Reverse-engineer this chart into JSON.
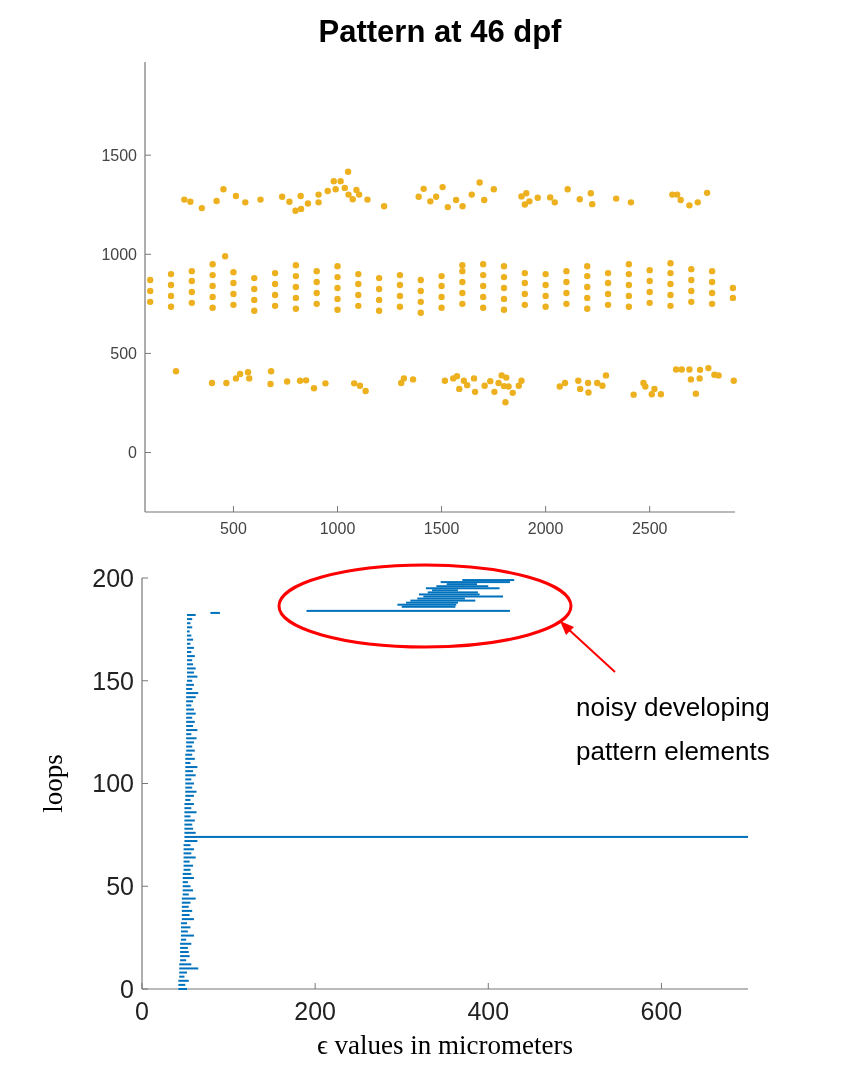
{
  "chart_data": [
    {
      "type": "scatter",
      "title": "Pattern at 46 dpf",
      "marker": "circle",
      "color": "#edb120",
      "x": [
        264,
        293,
        348,
        419,
        452,
        512,
        557,
        630,
        734,
        769,
        798,
        825,
        823,
        858,
        909,
        909,
        953,
        982,
        1015,
        991,
        1035,
        1051,
        1053,
        1073,
        1091,
        1104,
        1144,
        1224,
        1390,
        1414,
        1446,
        1474,
        1505,
        1530,
        1570,
        1601,
        1645,
        1683,
        1705,
        1751,
        1884,
        1907,
        1900,
        1922,
        1962,
        2022,
        2044,
        2106,
        2164,
        2217,
        2224,
        2339,
        2410,
        2609,
        2632,
        2649,
        2691,
        2731,
        2776,
        224,
        397,
        466,
        512,
        532,
        570,
        576,
        681,
        678,
        758,
        820,
        849,
        887,
        942,
        1080,
        1108,
        1135,
        1306,
        1319,
        1363,
        1516,
        1556,
        1574,
        1585,
        1607,
        1623,
        1656,
        1661,
        1707,
        1734,
        1754,
        1774,
        1789,
        1811,
        1800,
        1822,
        1807,
        1842,
        1871,
        1884,
        2068,
        2093,
        2157,
        2166,
        2204,
        2206,
        2248,
        2273,
        2290,
        2423,
        2470,
        2479,
        2510,
        2523,
        2554,
        2627,
        2654,
        2691,
        2698,
        2722,
        2742,
        2782,
        2811,
        2831,
        2740,
        2904,
        100,
        100,
        100,
        200,
        200,
        200,
        200,
        300,
        300,
        300,
        300,
        400,
        400,
        400,
        400,
        400,
        460,
        500,
        500,
        500,
        500,
        600,
        600,
        600,
        600,
        700,
        700,
        700,
        700,
        800,
        800,
        800,
        800,
        800,
        900,
        900,
        900,
        900,
        1000,
        1000,
        1000,
        1000,
        1000,
        1100,
        1100,
        1100,
        1100,
        1200,
        1200,
        1200,
        1200,
        1300,
        1300,
        1300,
        1300,
        1400,
        1400,
        1400,
        1400,
        1500,
        1500,
        1500,
        1500,
        1600,
        1600,
        1600,
        1600,
        1600,
        1700,
        1700,
        1700,
        1700,
        1700,
        1800,
        1800,
        1800,
        1800,
        1800,
        1900,
        1900,
        1900,
        1900,
        2000,
        2000,
        2000,
        2000,
        2100,
        2100,
        2100,
        2100,
        2200,
        2200,
        2200,
        2200,
        2200,
        2300,
        2300,
        2300,
        2300,
        2400,
        2400,
        2400,
        2400,
        2400,
        2500,
        2500,
        2500,
        2500,
        2600,
        2600,
        2600,
        2600,
        2600,
        2700,
        2700,
        2700,
        2700,
        2800,
        2800,
        2800,
        2800,
        2900,
        2900
      ],
      "values": [
        1276,
        1265,
        1233,
        1269,
        1328,
        1294,
        1262,
        1276,
        1290,
        1265,
        1220,
        1229,
        1294,
        1256,
        1301,
        1262,
        1319,
        1369,
        1369,
        1328,
        1335,
        1416,
        1301,
        1278,
        1324,
        1301,
        1276,
        1242,
        1290,
        1330,
        1267,
        1290,
        1339,
        1238,
        1274,
        1242,
        1301,
        1362,
        1274,
        1328,
        1292,
        1308,
        1251,
        1267,
        1285,
        1287,
        1262,
        1328,
        1278,
        1308,
        1253,
        1281,
        1262,
        1301,
        1301,
        1274,
        1247,
        1262,
        1310,
        410,
        351,
        351,
        374,
        396,
        405,
        374,
        410,
        346,
        358,
        362,
        364,
        324,
        349,
        349,
        337,
        310,
        351,
        374,
        369,
        362,
        374,
        385,
        321,
        362,
        340,
        374,
        306,
        337,
        360,
        306,
        351,
        389,
        378,
        335,
        333,
        254,
        301,
        337,
        362,
        333,
        351,
        362,
        321,
        351,
        303,
        351,
        337,
        389,
        292,
        351,
        333,
        294,
        321,
        294,
        419,
        419,
        419,
        369,
        297,
        417,
        426,
        392,
        389,
        374,
        362,
        760,
        815,
        870,
        735,
        790,
        845,
        900,
        755,
        810,
        865,
        915,
        730,
        785,
        840,
        895,
        950,
        990,
        745,
        800,
        855,
        910,
        715,
        770,
        825,
        880,
        740,
        795,
        850,
        905,
        725,
        780,
        835,
        890,
        945,
        750,
        805,
        860,
        915,
        720,
        775,
        830,
        885,
        940,
        740,
        795,
        850,
        900,
        715,
        770,
        825,
        880,
        735,
        790,
        845,
        895,
        705,
        760,
        815,
        870,
        730,
        785,
        840,
        890,
        750,
        805,
        860,
        915,
        945,
        730,
        785,
        840,
        895,
        950,
        720,
        775,
        830,
        885,
        940,
        745,
        800,
        855,
        905,
        735,
        790,
        845,
        900,
        750,
        805,
        860,
        915,
        725,
        780,
        835,
        890,
        940,
        745,
        800,
        855,
        905,
        735,
        790,
        845,
        900,
        950,
        755,
        810,
        865,
        920,
        740,
        795,
        850,
        905,
        955,
        760,
        815,
        870,
        925,
        750,
        805,
        860,
        915,
        780,
        830
      ],
      "xlim": [
        75,
        2910
      ],
      "ylim": [
        -300,
        1970
      ],
      "xticks": [
        500,
        1000,
        1500,
        2000,
        2500
      ],
      "yticks": [
        0,
        500,
        1000,
        1500
      ]
    },
    {
      "type": "bar",
      "orientation": "horizontal",
      "color": "#0072bd",
      "xlabel": "ϵ values in micrometers",
      "ylabel": "loops",
      "x": [
        0,
        2,
        4,
        6,
        8,
        10,
        12,
        14,
        16,
        18,
        20,
        22,
        24,
        26,
        28,
        30,
        32,
        34,
        36,
        38,
        40,
        42,
        44,
        46,
        48,
        50,
        52,
        54,
        56,
        58,
        60,
        62,
        64,
        66,
        68,
        70,
        72,
        74,
        76,
        78,
        80,
        82,
        84,
        86,
        88,
        90,
        92,
        94,
        96,
        98,
        100,
        102,
        104,
        106,
        108,
        110,
        112,
        114,
        116,
        118,
        120,
        122,
        124,
        126,
        128,
        130,
        132,
        134,
        136,
        138,
        140,
        142,
        144,
        146,
        148,
        150,
        152,
        154,
        156,
        158,
        160,
        162,
        164,
        166,
        168,
        170,
        172,
        174,
        176,
        178,
        180,
        182,
        183,
        184,
        186,
        187,
        188,
        189,
        190,
        191,
        192,
        193,
        194,
        195,
        196,
        197,
        198,
        199
      ],
      "base": [
        42,
        42,
        42,
        43,
        43,
        43,
        43,
        44,
        44,
        44,
        44,
        44,
        45,
        45,
        45,
        45,
        45,
        46,
        46,
        46,
        46,
        46,
        46,
        47,
        47,
        47,
        47,
        47,
        47,
        48,
        48,
        48,
        48,
        48,
        48,
        48,
        49,
        49,
        49,
        49,
        49,
        49,
        49,
        49,
        49,
        49,
        50,
        50,
        50,
        50,
        50,
        50,
        50,
        50,
        50,
        50,
        50,
        50,
        51,
        51,
        51,
        51,
        51,
        51,
        51,
        51,
        51,
        51,
        51,
        51,
        51,
        51,
        51,
        51,
        51,
        52,
        52,
        52,
        52,
        52,
        52,
        52,
        52,
        52,
        52,
        52,
        52,
        52,
        52,
        52,
        52,
        52,
        79,
        190,
        300,
        295,
        305,
        310,
        318,
        325,
        320,
        330,
        335,
        328,
        340,
        352,
        345,
        370
      ],
      "values": [
        10,
        8,
        12,
        6,
        9,
        22,
        14,
        7,
        11,
        10,
        9,
        13,
        6,
        15,
        8,
        11,
        7,
        14,
        9,
        12,
        8,
        10,
        16,
        7,
        12,
        9,
        6,
        13,
        10,
        8,
        11,
        7,
        14,
        9,
        12,
        8,
        15,
        651,
        13,
        10,
        9,
        12,
        7,
        14,
        8,
        11,
        6,
        10,
        13,
        8,
        10,
        7,
        12,
        9,
        14,
        6,
        11,
        8,
        10,
        7,
        9,
        12,
        6,
        13,
        8,
        10,
        7,
        11,
        9,
        6,
        8,
        11,
        14,
        7,
        9,
        6,
        12,
        8,
        10,
        7,
        6,
        9,
        5,
        8,
        4,
        7,
        5,
        3,
        6,
        4,
        6,
        10,
        11,
        235,
        62,
        68,
        60,
        75,
        55,
        92,
        70,
        58,
        30,
        85,
        60,
        35,
        80,
        60
      ],
      "xlim": [
        0,
        700
      ],
      "ylim": [
        0,
        200
      ],
      "xticks": [
        0,
        200,
        400,
        600
      ],
      "yticks": [
        0,
        50,
        100,
        150,
        200
      ],
      "annotations": [
        "noisy developing pattern elements"
      ]
    }
  ]
}
